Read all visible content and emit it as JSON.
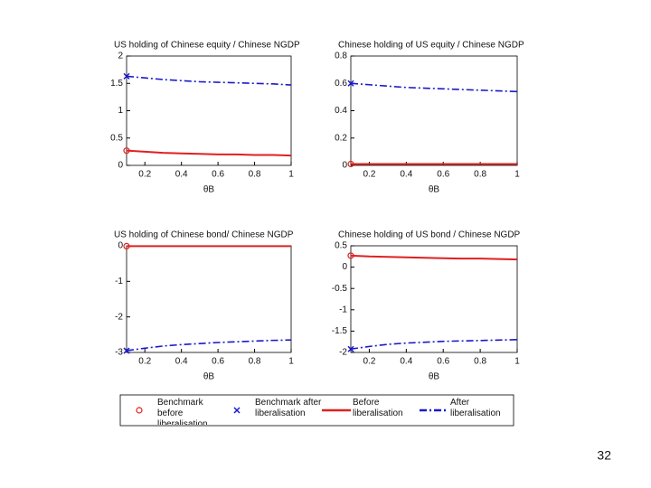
{
  "chart_data": [
    {
      "type": "line",
      "title": "US holding of Chinese equity / Chinese NGDP",
      "xlabel": "θB",
      "x": [
        0.1,
        0.2,
        0.3,
        0.4,
        0.5,
        0.6,
        0.7,
        0.8,
        0.9,
        1.0
      ],
      "xlim": [
        0.1,
        1
      ],
      "xticks": [
        0.2,
        0.4,
        0.6,
        0.8,
        1
      ],
      "ylim": [
        0,
        2
      ],
      "yticks": [
        0,
        0.5,
        1,
        1.5,
        2
      ],
      "series": [
        {
          "name": "Benchmark before liberalisation",
          "color": "#e02020",
          "marker": "o",
          "x": [
            0.1
          ],
          "values": [
            0.27
          ]
        },
        {
          "name": "Benchmark after liberalisation",
          "color": "#1a1acc",
          "marker": "x",
          "x": [
            0.1
          ],
          "values": [
            1.63
          ]
        },
        {
          "name": "Before liberalisation",
          "color": "#e02020",
          "dash": "solid",
          "values": [
            0.27,
            0.25,
            0.23,
            0.22,
            0.21,
            0.2,
            0.2,
            0.19,
            0.19,
            0.18
          ]
        },
        {
          "name": "After liberalisation",
          "color": "#1a1acc",
          "dash": "dashdot",
          "values": [
            1.63,
            1.6,
            1.57,
            1.55,
            1.53,
            1.52,
            1.51,
            1.5,
            1.49,
            1.47
          ]
        }
      ]
    },
    {
      "type": "line",
      "title": "Chinese holding of US equity / Chinese NGDP",
      "xlabel": "θB",
      "x": [
        0.1,
        0.2,
        0.3,
        0.4,
        0.5,
        0.6,
        0.7,
        0.8,
        0.9,
        1.0
      ],
      "xlim": [
        0.1,
        1
      ],
      "xticks": [
        0.2,
        0.4,
        0.6,
        0.8,
        1
      ],
      "ylim": [
        0,
        0.8
      ],
      "yticks": [
        0,
        0.2,
        0.4,
        0.6,
        0.8
      ],
      "series": [
        {
          "name": "Benchmark before liberalisation",
          "color": "#e02020",
          "marker": "o",
          "x": [
            0.1
          ],
          "values": [
            0.01
          ]
        },
        {
          "name": "Benchmark after liberalisation",
          "color": "#1a1acc",
          "marker": "x",
          "x": [
            0.1
          ],
          "values": [
            0.6
          ]
        },
        {
          "name": "Before liberalisation",
          "color": "#e02020",
          "dash": "solid",
          "values": [
            0.01,
            0.01,
            0.01,
            0.01,
            0.01,
            0.01,
            0.01,
            0.01,
            0.01,
            0.01
          ]
        },
        {
          "name": "After liberalisation",
          "color": "#1a1acc",
          "dash": "dashdot",
          "values": [
            0.6,
            0.59,
            0.58,
            0.57,
            0.565,
            0.56,
            0.555,
            0.55,
            0.545,
            0.54
          ]
        }
      ]
    },
    {
      "type": "line",
      "title": "US holding of Chinese bond/ Chinese NGDP",
      "xlabel": "θB",
      "x": [
        0.1,
        0.2,
        0.3,
        0.4,
        0.5,
        0.6,
        0.7,
        0.8,
        0.9,
        1.0
      ],
      "xlim": [
        0.1,
        1
      ],
      "xticks": [
        0.2,
        0.4,
        0.6,
        0.8,
        1
      ],
      "ylim": [
        -3,
        0
      ],
      "yticks": [
        -3,
        -2,
        -1,
        0
      ],
      "series": [
        {
          "name": "Benchmark before liberalisation",
          "color": "#e02020",
          "marker": "o",
          "x": [
            0.1
          ],
          "values": [
            -0.01
          ]
        },
        {
          "name": "Benchmark after liberalisation",
          "color": "#1a1acc",
          "marker": "x",
          "x": [
            0.1
          ],
          "values": [
            -2.95
          ]
        },
        {
          "name": "Before liberalisation",
          "color": "#e02020",
          "dash": "solid",
          "values": [
            -0.01,
            -0.01,
            -0.01,
            -0.01,
            -0.01,
            -0.01,
            -0.01,
            -0.01,
            -0.01,
            -0.01
          ]
        },
        {
          "name": "After liberalisation",
          "color": "#1a1acc",
          "dash": "dashdot",
          "values": [
            -2.95,
            -2.88,
            -2.82,
            -2.78,
            -2.75,
            -2.72,
            -2.7,
            -2.68,
            -2.66,
            -2.65
          ]
        }
      ]
    },
    {
      "type": "line",
      "title": "Chinese holding of US bond / Chinese NGDP",
      "xlabel": "θB",
      "x": [
        0.1,
        0.2,
        0.3,
        0.4,
        0.5,
        0.6,
        0.7,
        0.8,
        0.9,
        1.0
      ],
      "xlim": [
        0.1,
        1
      ],
      "xticks": [
        0.2,
        0.4,
        0.6,
        0.8,
        1
      ],
      "ylim": [
        -2,
        0.5
      ],
      "yticks": [
        -2,
        -1.5,
        -1,
        -0.5,
        0,
        0.5
      ],
      "series": [
        {
          "name": "Benchmark before liberalisation",
          "color": "#e02020",
          "marker": "o",
          "x": [
            0.1
          ],
          "values": [
            0.27
          ]
        },
        {
          "name": "Benchmark after liberalisation",
          "color": "#1a1acc",
          "marker": "x",
          "x": [
            0.1
          ],
          "values": [
            -1.92
          ]
        },
        {
          "name": "Before liberalisation",
          "color": "#e02020",
          "dash": "solid",
          "values": [
            0.27,
            0.25,
            0.24,
            0.23,
            0.22,
            0.21,
            0.2,
            0.2,
            0.19,
            0.18
          ]
        },
        {
          "name": "After liberalisation",
          "color": "#1a1acc",
          "dash": "dashdot",
          "values": [
            -1.92,
            -1.86,
            -1.81,
            -1.78,
            -1.76,
            -1.74,
            -1.73,
            -1.72,
            -1.71,
            -1.7
          ]
        }
      ]
    }
  ],
  "page_number": "32"
}
